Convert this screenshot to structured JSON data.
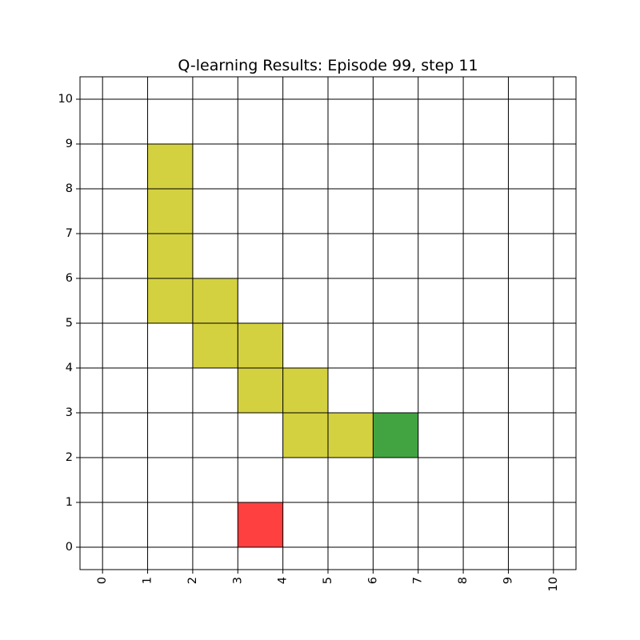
{
  "chart_data": {
    "type": "heatmap",
    "title": "Q-learning Results: Episode 99, step 11",
    "xlabel": "",
    "ylabel": "",
    "xlim": [
      -0.5,
      10.5
    ],
    "ylim": [
      -0.5,
      10.5
    ],
    "xticks": [
      0,
      1,
      2,
      3,
      4,
      5,
      6,
      7,
      8,
      9,
      10
    ],
    "yticks": [
      0,
      1,
      2,
      3,
      4,
      5,
      6,
      7,
      8,
      9,
      10
    ],
    "xtick_labels": [
      "0",
      "1",
      "2",
      "3",
      "4",
      "5",
      "6",
      "7",
      "8",
      "9",
      "10"
    ],
    "ytick_labels": [
      "0",
      "1",
      "2",
      "3",
      "4",
      "5",
      "6",
      "7",
      "8",
      "9",
      "10"
    ],
    "xtick_rotation": 90,
    "grid": true,
    "colors": {
      "path": "#d4d140",
      "agent": "#41a441",
      "start": "#ff4040",
      "grid": "#000000",
      "background": "#ffffff"
    },
    "cells": [
      {
        "x": 1,
        "y": 8,
        "kind": "path"
      },
      {
        "x": 1,
        "y": 7,
        "kind": "path"
      },
      {
        "x": 1,
        "y": 6,
        "kind": "path"
      },
      {
        "x": 1,
        "y": 5,
        "kind": "path"
      },
      {
        "x": 2,
        "y": 5,
        "kind": "path"
      },
      {
        "x": 2,
        "y": 4,
        "kind": "path"
      },
      {
        "x": 3,
        "y": 4,
        "kind": "path"
      },
      {
        "x": 3,
        "y": 3,
        "kind": "path"
      },
      {
        "x": 4,
        "y": 3,
        "kind": "path"
      },
      {
        "x": 4,
        "y": 2,
        "kind": "path"
      },
      {
        "x": 5,
        "y": 2,
        "kind": "path"
      },
      {
        "x": 6,
        "y": 2,
        "kind": "agent"
      },
      {
        "x": 3,
        "y": 0,
        "kind": "start"
      }
    ]
  }
}
